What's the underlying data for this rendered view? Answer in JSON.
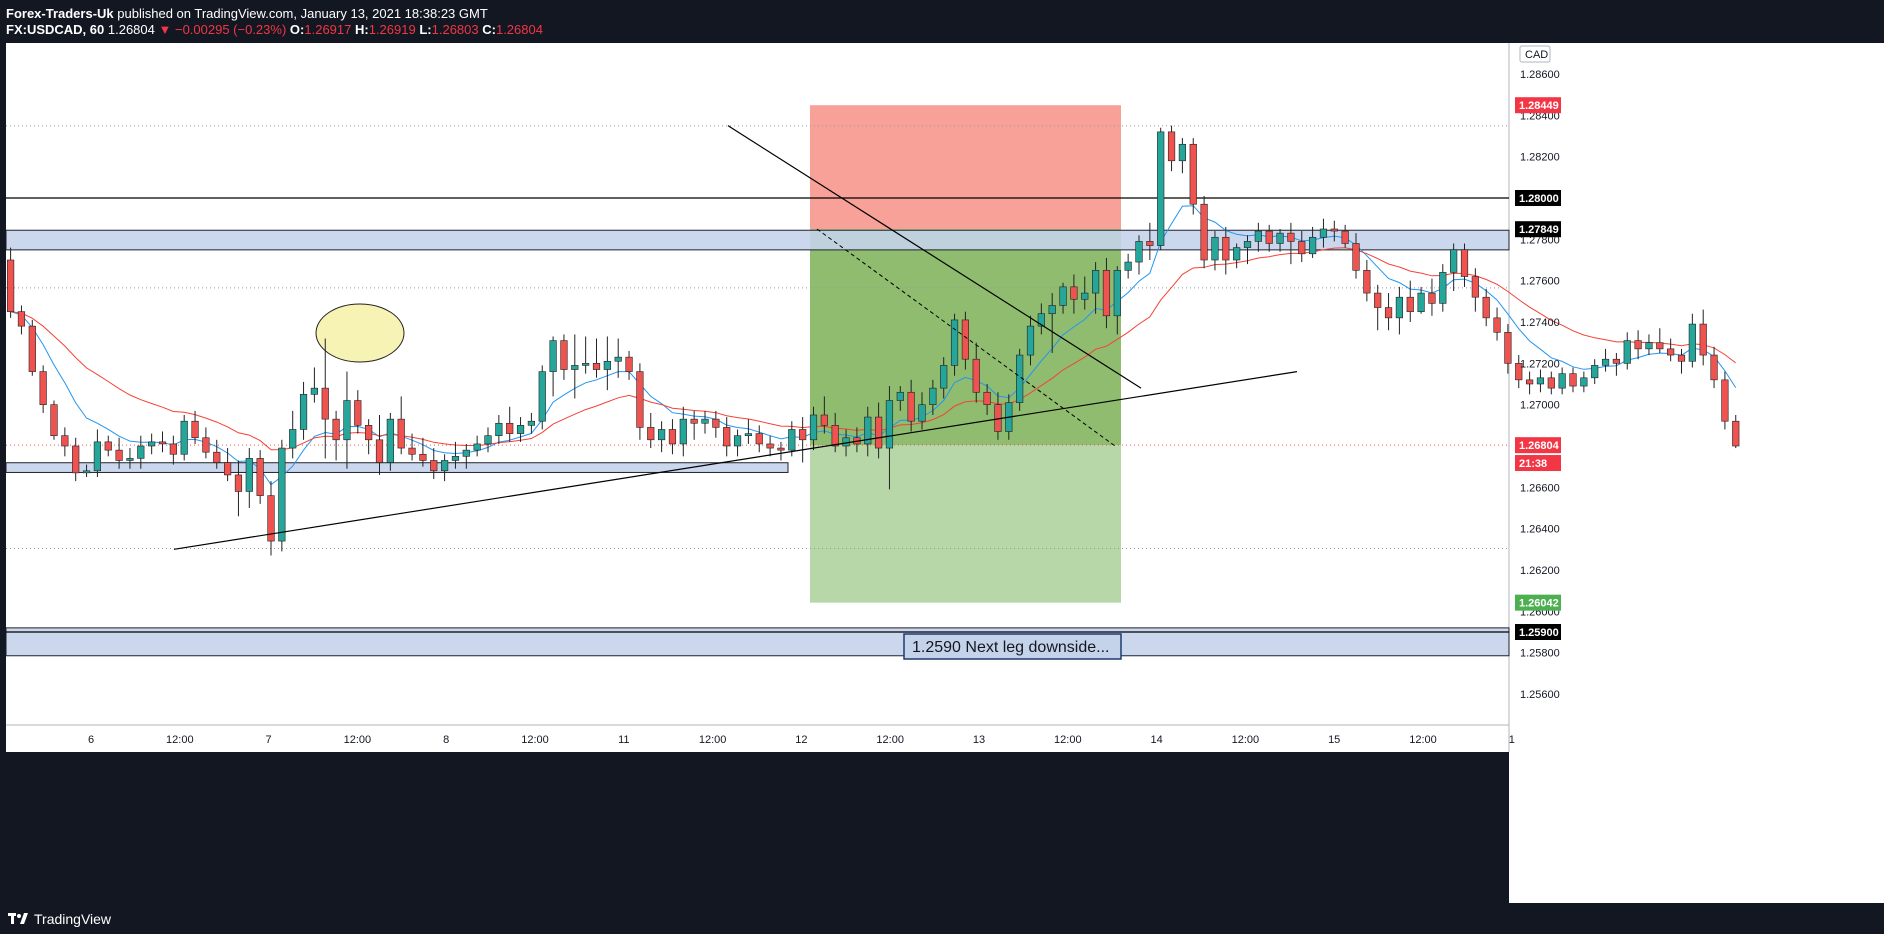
{
  "header": {
    "publisher": "Forex-Traders-Uk",
    "published_text": "published on TradingView.com, January 13, 2021 18:38:23 GMT",
    "symbol": "FX:USDCAD, 60",
    "last": "1.26804",
    "change": "▼ −0.00295 (−0.23%)",
    "o_label": "O:",
    "o_value": "1.26917",
    "h_label": "H:",
    "h_value": "1.26919",
    "l_label": "L:",
    "l_value": "1.26803",
    "c_label": "C:",
    "c_value": "1.26804"
  },
  "footer": {
    "brand": "TradingView"
  },
  "colors": {
    "background": "#ffffff",
    "up": "#26a69a",
    "down": "#ef5350",
    "stop_zone": "#f8a199",
    "profit_zone": "#8fbc6f",
    "target_zone": "#b7d7a8",
    "zone_band": "#c5d3ea",
    "ema_fast": "#2196f3",
    "ema_slow": "#f44336"
  },
  "chart_data": {
    "type": "candlestick",
    "currency": "CAD",
    "ylim": [
      1.2545,
      1.2875
    ],
    "y_ticks": [
      "1.28600",
      "1.28400",
      "1.28200",
      "1.28000",
      "1.27800",
      "1.27600",
      "1.27400",
      "1.27200",
      "1.27000",
      "1.26800",
      "1.26600",
      "1.26400",
      "1.26200",
      "1.26000",
      "1.25800",
      "1.25600"
    ],
    "x_ticks": [
      "6",
      "12:00",
      "7",
      "12:00",
      "8",
      "12:00",
      "11",
      "12:00",
      "12",
      "12:00",
      "13",
      "12:00",
      "14",
      "12:00",
      "15",
      "12:00",
      "1"
    ],
    "price_badges": [
      {
        "label": "1.28449",
        "value": 1.28449,
        "color": "#f23645"
      },
      {
        "label": "1.28000",
        "value": 1.28,
        "color": "#000000"
      },
      {
        "label": "1.27849",
        "value": 1.27849,
        "color": "#000000"
      },
      {
        "label": "1.26804",
        "value": 1.26804,
        "color": "#f23645"
      },
      {
        "label": "21:38",
        "value": 1.26795,
        "color": "#f23645"
      },
      {
        "label": "1.26042",
        "value": 1.26042,
        "color": "#4caf50"
      },
      {
        "label": "1.25900",
        "value": 1.259,
        "color": "#000000"
      }
    ],
    "annotation": "1.2590 Next leg downside...",
    "position": {
      "entry": 1.27849,
      "stop": 1.28449,
      "target": 1.26042,
      "current": 1.26804
    },
    "horizontal_levels": [
      1.28,
      1.259
    ],
    "dotted_levels": [
      1.28349,
      1.27565,
      1.26804,
      1.26304
    ],
    "zones": [
      [
        1.27749,
        1.27844
      ],
      [
        1.26672,
        1.26719
      ],
      [
        1.25785,
        1.2592
      ]
    ],
    "candles": [
      [
        1.277,
        1.2776,
        1.2742,
        1.2745
      ],
      [
        1.2745,
        1.2748,
        1.2734,
        1.2738
      ],
      [
        1.2738,
        1.2741,
        1.2714,
        1.2716
      ],
      [
        1.2716,
        1.2719,
        1.2696,
        1.27
      ],
      [
        1.27,
        1.2702,
        1.2683,
        1.2685
      ],
      [
        1.2685,
        1.2689,
        1.2675,
        1.268
      ],
      [
        1.268,
        1.2684,
        1.2663,
        1.2667
      ],
      [
        1.2667,
        1.2671,
        1.2665,
        1.2668
      ],
      [
        1.2668,
        1.2688,
        1.2665,
        1.2682
      ],
      [
        1.2682,
        1.2685,
        1.2675,
        1.2678
      ],
      [
        1.2678,
        1.2684,
        1.2669,
        1.2673
      ],
      [
        1.2673,
        1.2679,
        1.2669,
        1.2674
      ],
      [
        1.2674,
        1.2685,
        1.2669,
        1.268
      ],
      [
        1.268,
        1.2686,
        1.2676,
        1.2682
      ],
      [
        1.2682,
        1.2687,
        1.2677,
        1.2681
      ],
      [
        1.2681,
        1.2685,
        1.2671,
        1.2676
      ],
      [
        1.2676,
        1.2695,
        1.2673,
        1.2692
      ],
      [
        1.2692,
        1.2697,
        1.2681,
        1.2684
      ],
      [
        1.2684,
        1.2689,
        1.2674,
        1.2677
      ],
      [
        1.2677,
        1.2683,
        1.2669,
        1.2672
      ],
      [
        1.2672,
        1.2679,
        1.2663,
        1.2666
      ],
      [
        1.2666,
        1.2673,
        1.2646,
        1.2658
      ],
      [
        1.2658,
        1.2679,
        1.265,
        1.2674
      ],
      [
        1.2674,
        1.2678,
        1.2652,
        1.2656
      ],
      [
        1.2656,
        1.2663,
        1.2627,
        1.2634
      ],
      [
        1.2634,
        1.2683,
        1.2629,
        1.2679
      ],
      [
        1.2679,
        1.2697,
        1.2674,
        1.2688
      ],
      [
        1.2688,
        1.2711,
        1.2683,
        1.2705
      ],
      [
        1.2705,
        1.2718,
        1.2701,
        1.2708
      ],
      [
        1.2708,
        1.2732,
        1.2674,
        1.2693
      ],
      [
        1.2693,
        1.2697,
        1.2673,
        1.2683
      ],
      [
        1.2683,
        1.2716,
        1.2669,
        1.2702
      ],
      [
        1.2702,
        1.2707,
        1.2686,
        1.269
      ],
      [
        1.269,
        1.2693,
        1.2676,
        1.2683
      ],
      [
        1.2683,
        1.2695,
        1.2666,
        1.2672
      ],
      [
        1.2672,
        1.2696,
        1.2668,
        1.2693
      ],
      [
        1.2693,
        1.2704,
        1.2676,
        1.2679
      ],
      [
        1.2679,
        1.2686,
        1.2673,
        1.2676
      ],
      [
        1.2676,
        1.2684,
        1.267,
        1.2673
      ],
      [
        1.2673,
        1.2679,
        1.2664,
        1.2668
      ],
      [
        1.2668,
        1.2676,
        1.2663,
        1.2673
      ],
      [
        1.2673,
        1.2682,
        1.2669,
        1.2675
      ],
      [
        1.2675,
        1.2681,
        1.2669,
        1.2678
      ],
      [
        1.2678,
        1.2685,
        1.2675,
        1.2681
      ],
      [
        1.2681,
        1.2689,
        1.2677,
        1.2685
      ],
      [
        1.2685,
        1.2695,
        1.2681,
        1.2691
      ],
      [
        1.2691,
        1.2699,
        1.2682,
        1.2686
      ],
      [
        1.2686,
        1.2694,
        1.2682,
        1.269
      ],
      [
        1.269,
        1.2696,
        1.2686,
        1.2692
      ],
      [
        1.2692,
        1.2719,
        1.2688,
        1.2716
      ],
      [
        1.2716,
        1.2733,
        1.2704,
        1.2731
      ],
      [
        1.2731,
        1.2734,
        1.2712,
        1.2717
      ],
      [
        1.2717,
        1.2734,
        1.2703,
        1.2719
      ],
      [
        1.2719,
        1.2733,
        1.2715,
        1.272
      ],
      [
        1.272,
        1.2732,
        1.2713,
        1.2717
      ],
      [
        1.2717,
        1.2733,
        1.2707,
        1.2721
      ],
      [
        1.2721,
        1.2732,
        1.2713,
        1.2723
      ],
      [
        1.2723,
        1.2726,
        1.2712,
        1.2716
      ],
      [
        1.2716,
        1.272,
        1.2683,
        1.2689
      ],
      [
        1.2689,
        1.2696,
        1.2679,
        1.2683
      ],
      [
        1.2683,
        1.2692,
        1.2677,
        1.2688
      ],
      [
        1.2688,
        1.2693,
        1.2676,
        1.2681
      ],
      [
        1.2681,
        1.2699,
        1.2675,
        1.2693
      ],
      [
        1.2693,
        1.2697,
        1.2683,
        1.2691
      ],
      [
        1.2691,
        1.2697,
        1.2686,
        1.2693
      ],
      [
        1.2693,
        1.2697,
        1.2684,
        1.2689
      ],
      [
        1.2689,
        1.2694,
        1.2675,
        1.268
      ],
      [
        1.268,
        1.2688,
        1.2675,
        1.2685
      ],
      [
        1.2685,
        1.2693,
        1.2681,
        1.2686
      ],
      [
        1.2686,
        1.269,
        1.2677,
        1.2681
      ],
      [
        1.2681,
        1.2685,
        1.2675,
        1.2679
      ],
      [
        1.2679,
        1.2682,
        1.2673,
        1.2678
      ],
      [
        1.2678,
        1.2692,
        1.2675,
        1.2688
      ],
      [
        1.2688,
        1.2694,
        1.2672,
        1.2683
      ],
      [
        1.2683,
        1.2699,
        1.2678,
        1.2695
      ],
      [
        1.2695,
        1.2704,
        1.2686,
        1.269
      ],
      [
        1.269,
        1.2696,
        1.2677,
        1.268
      ],
      [
        1.268,
        1.2688,
        1.2675,
        1.2684
      ],
      [
        1.2684,
        1.2689,
        1.2677,
        1.2681
      ],
      [
        1.2681,
        1.2699,
        1.2675,
        1.2694
      ],
      [
        1.2694,
        1.2701,
        1.2674,
        1.2679
      ],
      [
        1.2679,
        1.2709,
        1.2659,
        1.2702
      ],
      [
        1.2702,
        1.2709,
        1.2697,
        1.2706
      ],
      [
        1.2706,
        1.2712,
        1.2687,
        1.2692
      ],
      [
        1.2692,
        1.2706,
        1.2688,
        1.27
      ],
      [
        1.27,
        1.2712,
        1.2695,
        1.2708
      ],
      [
        1.2708,
        1.2723,
        1.2703,
        1.2719
      ],
      [
        1.2719,
        1.2744,
        1.2714,
        1.2741
      ],
      [
        1.2741,
        1.2745,
        1.2717,
        1.2722
      ],
      [
        1.2722,
        1.273,
        1.2701,
        1.2706
      ],
      [
        1.2706,
        1.271,
        1.2695,
        1.27
      ],
      [
        1.27,
        1.2706,
        1.2683,
        1.2687
      ],
      [
        1.2687,
        1.2705,
        1.2683,
        1.2701
      ],
      [
        1.2701,
        1.2727,
        1.2697,
        1.2724
      ],
      [
        1.2724,
        1.2743,
        1.2719,
        1.2738
      ],
      [
        1.2738,
        1.2749,
        1.2734,
        1.2744
      ],
      [
        1.2744,
        1.2754,
        1.2725,
        1.2748
      ],
      [
        1.2748,
        1.2759,
        1.2744,
        1.2757
      ],
      [
        1.2757,
        1.2763,
        1.2744,
        1.2751
      ],
      [
        1.2751,
        1.2762,
        1.2746,
        1.2754
      ],
      [
        1.2754,
        1.2769,
        1.2744,
        1.2765
      ],
      [
        1.2765,
        1.2771,
        1.2737,
        1.2743
      ],
      [
        1.2743,
        1.2767,
        1.2734,
        1.2765
      ],
      [
        1.2765,
        1.2773,
        1.2761,
        1.2769
      ],
      [
        1.2769,
        1.2782,
        1.2763,
        1.2779
      ],
      [
        1.2779,
        1.2788,
        1.277,
        1.2777
      ],
      [
        1.2777,
        1.2834,
        1.2775,
        1.2832
      ],
      [
        1.2832,
        1.2835,
        1.2813,
        1.2818
      ],
      [
        1.2818,
        1.2829,
        1.2812,
        1.2826
      ],
      [
        1.2826,
        1.2829,
        1.2792,
        1.2797
      ],
      [
        1.2797,
        1.2801,
        1.2766,
        1.277
      ],
      [
        1.277,
        1.2784,
        1.2765,
        1.2781
      ],
      [
        1.2781,
        1.2786,
        1.2763,
        1.277
      ],
      [
        1.277,
        1.2778,
        1.2766,
        1.2776
      ],
      [
        1.2776,
        1.2782,
        1.2768,
        1.2779
      ],
      [
        1.2779,
        1.2788,
        1.2774,
        1.2784
      ],
      [
        1.2784,
        1.2787,
        1.2774,
        1.2778
      ],
      [
        1.2778,
        1.2785,
        1.2774,
        1.2783
      ],
      [
        1.2783,
        1.2788,
        1.2768,
        1.2779
      ],
      [
        1.2779,
        1.2784,
        1.2769,
        1.2773
      ],
      [
        1.2773,
        1.2786,
        1.2771,
        1.2781
      ],
      [
        1.2781,
        1.279,
        1.2776,
        1.2785
      ],
      [
        1.2785,
        1.2789,
        1.2779,
        1.2784
      ],
      [
        1.2784,
        1.2787,
        1.2776,
        1.2778
      ],
      [
        1.2778,
        1.2783,
        1.2761,
        1.2765
      ],
      [
        1.2765,
        1.277,
        1.275,
        1.2754
      ],
      [
        1.2754,
        1.2758,
        1.2736,
        1.2747
      ],
      [
        1.2747,
        1.2754,
        1.2736,
        1.2742
      ],
      [
        1.2742,
        1.2757,
        1.2734,
        1.2752
      ],
      [
        1.2752,
        1.276,
        1.274,
        1.2745
      ],
      [
        1.2745,
        1.2757,
        1.2744,
        1.2754
      ],
      [
        1.2754,
        1.2761,
        1.2743,
        1.2749
      ],
      [
        1.2749,
        1.2768,
        1.2745,
        1.2764
      ],
      [
        1.2764,
        1.2778,
        1.2755,
        1.2775
      ],
      [
        1.2775,
        1.2778,
        1.2757,
        1.2762
      ],
      [
        1.2762,
        1.2766,
        1.2745,
        1.2752
      ],
      [
        1.2752,
        1.2756,
        1.2738,
        1.2742
      ],
      [
        1.2742,
        1.2747,
        1.2731,
        1.2735
      ],
      [
        1.2735,
        1.2739,
        1.2715,
        1.272
      ],
      [
        1.272,
        1.2724,
        1.2708,
        1.2712
      ],
      [
        1.2712,
        1.2716,
        1.2705,
        1.271
      ],
      [
        1.271,
        1.2717,
        1.2706,
        1.2713
      ],
      [
        1.2713,
        1.2716,
        1.2705,
        1.2708
      ],
      [
        1.2708,
        1.2718,
        1.2705,
        1.2715
      ],
      [
        1.2715,
        1.2718,
        1.2706,
        1.2709
      ],
      [
        1.2709,
        1.2716,
        1.2706,
        1.2713
      ],
      [
        1.2713,
        1.2722,
        1.271,
        1.2719
      ],
      [
        1.2719,
        1.2727,
        1.2716,
        1.2722
      ],
      [
        1.2722,
        1.2725,
        1.2714,
        1.272
      ],
      [
        1.272,
        1.2735,
        1.2717,
        1.2731
      ],
      [
        1.2731,
        1.2736,
        1.2722,
        1.2727
      ],
      [
        1.2727,
        1.2734,
        1.2724,
        1.273
      ],
      [
        1.273,
        1.2737,
        1.2725,
        1.2727
      ],
      [
        1.2727,
        1.2732,
        1.2721,
        1.2724
      ],
      [
        1.2724,
        1.2727,
        1.2715,
        1.2721
      ],
      [
        1.2721,
        1.2744,
        1.2718,
        1.2739
      ],
      [
        1.2739,
        1.2746,
        1.2719,
        1.2724
      ],
      [
        1.2724,
        1.2728,
        1.2708,
        1.2712
      ],
      [
        1.2712,
        1.2716,
        1.2688,
        1.2692
      ],
      [
        1.2692,
        1.2695,
        1.2679,
        1.268
      ]
    ]
  }
}
